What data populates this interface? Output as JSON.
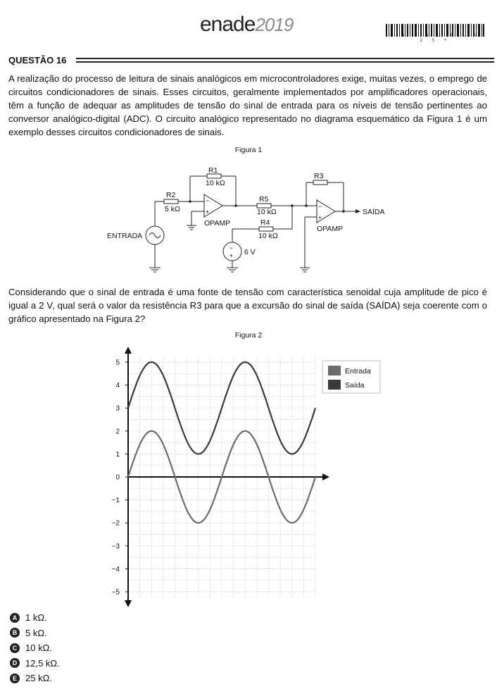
{
  "header": {
    "logo_main": "enade",
    "logo_year": "2019",
    "barcode_number": "* 8 1 1 2 0 1 9 2 5 *"
  },
  "question": {
    "title": "QUESTÃO 16",
    "paragraph1": "A realização do processo de leitura de sinais analógicos em microcontroladores exige, muitas vezes, o emprego de circuitos condicionadores de sinais. Esses circuitos, geralmente implementados por amplificadores operacionais, têm a função de adequar as amplitudes de tensão do sinal de entrada para os níveis de tensão pertinentes ao conversor analógico-digital (ADC). O circuito analógico representado no diagrama esquemático da Figura 1 é um exemplo desses circuitos condicionadores de sinais.",
    "paragraph2": "Considerando que o sinal de entrada é uma fonte de tensão com característica senoidal cuja amplitude de pico é igual a 2 V, qual será o valor da resistência R3 para que a excursão do sinal de saída (SAÍDA) seja coerente com o gráfico apresentado na Figura 2?"
  },
  "figure1": {
    "caption": "Figura 1",
    "r1_name": "R1",
    "r1_value": "10 kΩ",
    "r2_name": "R2",
    "r2_value": "5 kΩ",
    "r3_name": "R3",
    "r4_name": "R4",
    "r4_value": "10 kΩ",
    "r5_name": "R5",
    "r5_value": "10 kΩ",
    "opamp1": "OPAMP",
    "opamp2": "OPAMP",
    "input_label": "ENTRADA",
    "output_label": "SAÍDA",
    "source_value": "6 V",
    "minus": "−",
    "plus": "+"
  },
  "figure2": {
    "caption": "Figura 2"
  },
  "chart_data": {
    "type": "line",
    "title": "",
    "xlabel": "",
    "ylabel": "",
    "ylim": [
      -5,
      5
    ],
    "yticks": [
      5,
      4,
      3,
      2,
      1,
      0,
      -1,
      -2,
      -3,
      -4,
      -5
    ],
    "ytick_labels": [
      "5",
      "4",
      "3",
      "2",
      "1",
      "0",
      "−1",
      "−2",
      "−3",
      "−4",
      "−5"
    ],
    "grid": true,
    "legend_position": "top-right",
    "x": [
      0,
      45,
      90,
      135,
      180,
      225,
      270,
      315,
      360,
      405,
      450,
      495,
      540,
      585,
      630,
      675,
      720
    ],
    "series": [
      {
        "name": "Entrada",
        "color": "#6b6b6b",
        "values": [
          0,
          1.41,
          2,
          1.41,
          0,
          -1.41,
          -2,
          -1.41,
          0,
          1.41,
          2,
          1.41,
          0,
          -1.41,
          -2,
          -1.41,
          0
        ]
      },
      {
        "name": "Saída",
        "color": "#3a3a3a",
        "values": [
          3,
          4.41,
          5,
          4.41,
          3,
          1.59,
          1,
          1.59,
          3,
          4.41,
          5,
          4.41,
          3,
          1.59,
          1,
          1.59,
          3
        ]
      }
    ]
  },
  "options": [
    {
      "letter": "A",
      "text": "1 kΩ."
    },
    {
      "letter": "B",
      "text": "5 kΩ."
    },
    {
      "letter": "C",
      "text": "10 kΩ."
    },
    {
      "letter": "D",
      "text": "12,5 kΩ."
    },
    {
      "letter": "E",
      "text": "25 kΩ."
    }
  ]
}
